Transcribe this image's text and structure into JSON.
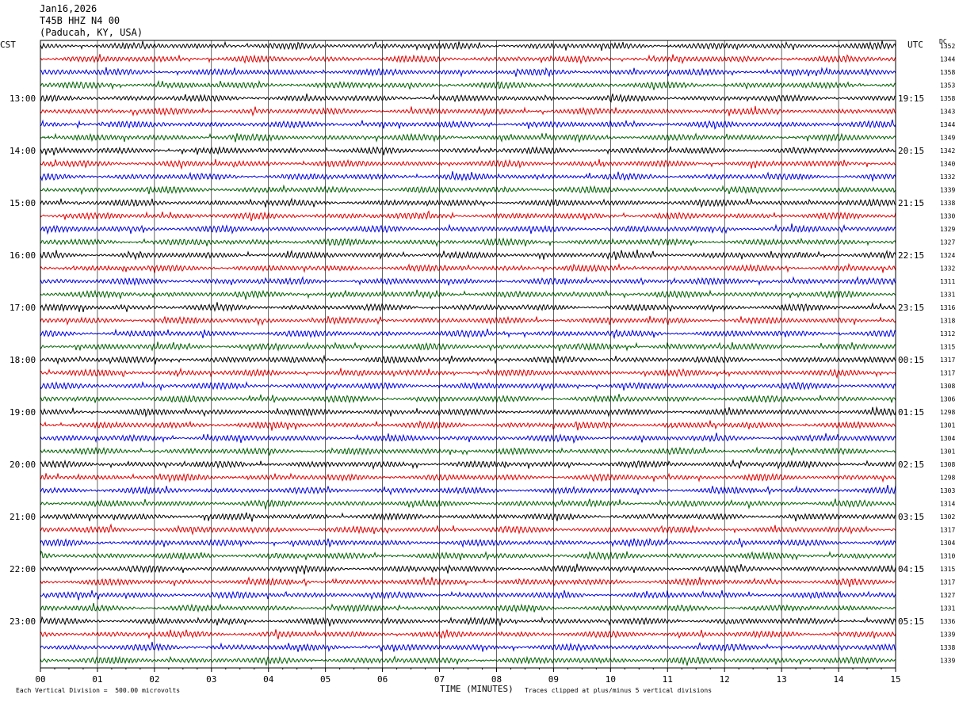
{
  "header": {
    "date": "Jan16,2026",
    "station": "T45B HHZ N4 00",
    "location": "(Paducah, KY, USA)"
  },
  "axis": {
    "left_zone": "CST",
    "right_zone": "UTC",
    "dc_label": "DC",
    "xlabel": "TIME (MINUTES)"
  },
  "footer": {
    "scale": "Each Vertical Division =  500.00 microvolts",
    "clip": "Traces clipped at plus/minus 5 vertical divisions"
  },
  "colors": {
    "trace_cycle": [
      "#000000",
      "#e00000",
      "#0000e0",
      "#006000"
    ],
    "grid": "#000000"
  },
  "chart_data": {
    "type": "line",
    "x_ticks": [
      "00",
      "01",
      "02",
      "03",
      "04",
      "05",
      "06",
      "07",
      "08",
      "09",
      "10",
      "11",
      "12",
      "13",
      "14",
      "15"
    ],
    "xlim": [
      0,
      15
    ],
    "rows_per_hour": 4,
    "left_hour_labels": [
      "13:00",
      "14:00",
      "15:00",
      "16:00",
      "17:00",
      "18:00",
      "19:00",
      "20:00",
      "21:00",
      "22:00",
      "23:00"
    ],
    "right_hour_labels": [
      "19:15",
      "20:15",
      "21:15",
      "22:15",
      "23:15",
      "00:15",
      "01:15",
      "02:15",
      "03:15",
      "04:15",
      "05:15"
    ],
    "dc_offsets": [
      "1352",
      "1344",
      "1358",
      "1353",
      "1358",
      "1343",
      "1344",
      "1349",
      "1342",
      "1340",
      "1332",
      "1339",
      "1338",
      "1330",
      "1329",
      "1327",
      "1324",
      "1332",
      "1311",
      "1331",
      "1316",
      "1318",
      "1312",
      "1315",
      "1317",
      "1317",
      "1308",
      "1306",
      "1298",
      "1301",
      "1304",
      "1301",
      "1308",
      "1298",
      "1303",
      "1314",
      "1302",
      "1317",
      "1304",
      "1310",
      "1315",
      "1317",
      "1327",
      "1331",
      "1336",
      "1339",
      "1338",
      "1339"
    ]
  }
}
